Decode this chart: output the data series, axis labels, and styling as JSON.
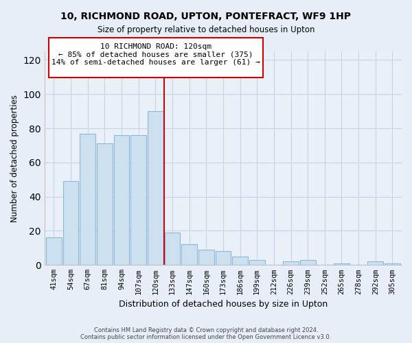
{
  "title1": "10, RICHMOND ROAD, UPTON, PONTEFRACT, WF9 1HP",
  "title2": "Size of property relative to detached houses in Upton",
  "xlabel": "Distribution of detached houses by size in Upton",
  "ylabel": "Number of detached properties",
  "bar_labels": [
    "41sqm",
    "54sqm",
    "67sqm",
    "81sqm",
    "94sqm",
    "107sqm",
    "120sqm",
    "133sqm",
    "147sqm",
    "160sqm",
    "173sqm",
    "186sqm",
    "199sqm",
    "212sqm",
    "226sqm",
    "239sqm",
    "252sqm",
    "265sqm",
    "278sqm",
    "292sqm",
    "305sqm"
  ],
  "bar_values": [
    16,
    49,
    77,
    71,
    76,
    76,
    90,
    19,
    12,
    9,
    8,
    5,
    3,
    0,
    2,
    3,
    0,
    1,
    0,
    2,
    1
  ],
  "highlight_index": 6,
  "bar_color": "#cce0f0",
  "bar_edgecolor": "#8ab8d8",
  "highlight_line_color": "#cc0000",
  "annotation_title": "10 RICHMOND ROAD: 120sqm",
  "annotation_line1": "← 85% of detached houses are smaller (375)",
  "annotation_line2": "14% of semi-detached houses are larger (61) →",
  "annotation_box_edgecolor": "#cc0000",
  "ylim": [
    0,
    125
  ],
  "yticks": [
    0,
    20,
    40,
    60,
    80,
    100,
    120
  ],
  "footer1": "Contains HM Land Registry data © Crown copyright and database right 2024.",
  "footer2": "Contains public sector information licensed under the Open Government Licence v3.0.",
  "bg_color": "#e8eef8",
  "plot_bg_color": "#eaf0f8",
  "grid_color": "#c5d5e8"
}
